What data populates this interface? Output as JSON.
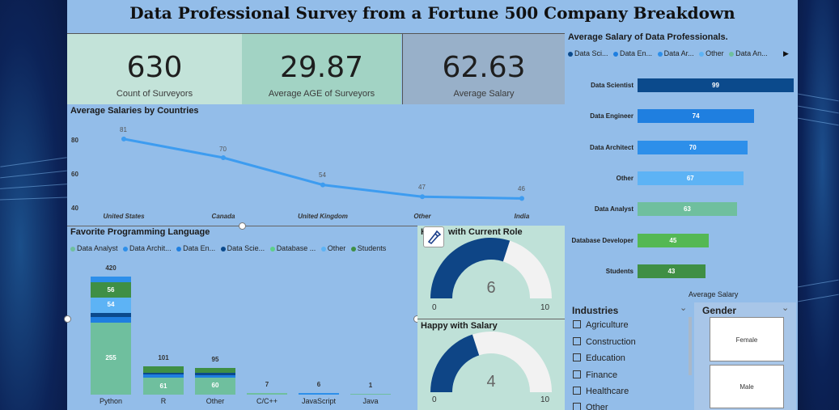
{
  "title": "Data Professional Survey from a Fortune 500 Company Breakdown",
  "kpis": [
    {
      "value": "630",
      "label": "Count of Surveyors"
    },
    {
      "value": "29.87",
      "label": "Average AGE of Surveyors"
    },
    {
      "value": "62.63",
      "label": "Average Salary"
    }
  ],
  "countries_chart": {
    "title": "Average Salaries by Countries",
    "yticks": [
      "80",
      "60",
      "40"
    ],
    "chart_data": {
      "type": "line",
      "categories": [
        "United States",
        "Canada",
        "United Kingdom",
        "Other",
        "India"
      ],
      "values": [
        81,
        70,
        54,
        47,
        46
      ],
      "value_labels": [
        "81",
        "70",
        "54",
        "47",
        "46"
      ],
      "ylim": [
        40,
        85
      ],
      "color": "#3d9cf0"
    }
  },
  "job_chart": {
    "title": "Average Salary of Data Professionals.",
    "legend": [
      "Data Sci...",
      "Data En...",
      "Data Ar...",
      "Other",
      "Data An..."
    ],
    "legend_colors": [
      "#0b4a8c",
      "#1f7fe0",
      "#2d8fea",
      "#5db3f5",
      "#6fbf9e"
    ],
    "xlabel": "Average Salary",
    "chart_data": {
      "type": "bar",
      "categories": [
        "Data Scientist",
        "Data Engineer",
        "Data Architect",
        "Other",
        "Data Analyst",
        "Database Developer",
        "Students"
      ],
      "values": [
        99,
        74,
        70,
        67,
        63,
        45,
        43
      ],
      "value_labels": [
        "99",
        "74",
        "70",
        "67",
        "63",
        "45",
        "43"
      ],
      "colors": [
        "#0b4a8c",
        "#1f7fe0",
        "#2d8fea",
        "#5db3f5",
        "#6fbf9e",
        "#54b854",
        "#3f8f45"
      ],
      "xlim": [
        0,
        99
      ]
    }
  },
  "lang_chart": {
    "title": "Favorite Programming Language",
    "legend": [
      "Data Analyst",
      "Data Archit...",
      "Data En...",
      "Data Scie...",
      "Database ...",
      "Other",
      "Students"
    ],
    "legend_colors": [
      "#6fbf9e",
      "#2d8fea",
      "#1f7fe0",
      "#0b4a8c",
      "#5dd08a",
      "#5db3f5",
      "#3f8f45"
    ],
    "chart_data": {
      "type": "bar",
      "categories": [
        "Python",
        "R",
        "Other",
        "C/C++",
        "JavaScript",
        "Java"
      ],
      "totals": [
        420,
        101,
        95,
        7,
        6,
        1
      ],
      "total_labels": [
        "420",
        "101",
        "95",
        "7",
        "6",
        "1"
      ],
      "stacks": [
        [
          {
            "v": 255,
            "c": "#6fbf9e",
            "label": "255"
          },
          {
            "v": 20,
            "c": "#1f7fe0",
            "label": ""
          },
          {
            "v": 16,
            "c": "#0b4a8c",
            "label": ""
          },
          {
            "v": 54,
            "c": "#5db3f5",
            "label": "54"
          },
          {
            "v": 56,
            "c": "#3f8f45",
            "label": "56"
          },
          {
            "v": 19,
            "c": "#2d8fea",
            "label": ""
          }
        ],
        [
          {
            "v": 61,
            "c": "#6fbf9e",
            "label": "61"
          },
          {
            "v": 10,
            "c": "#1f7fe0",
            "label": ""
          },
          {
            "v": 8,
            "c": "#0b4a8c",
            "label": ""
          },
          {
            "v": 22,
            "c": "#3f8f45",
            "label": ""
          }
        ],
        [
          {
            "v": 60,
            "c": "#6fbf9e",
            "label": "60"
          },
          {
            "v": 10,
            "c": "#1f7fe0",
            "label": ""
          },
          {
            "v": 8,
            "c": "#0b4a8c",
            "label": ""
          },
          {
            "v": 17,
            "c": "#3f8f45",
            "label": ""
          }
        ],
        [
          {
            "v": 7,
            "c": "#6fbf9e",
            "label": ""
          }
        ],
        [
          {
            "v": 6,
            "c": "#2d8fea",
            "label": ""
          }
        ],
        [
          {
            "v": 1,
            "c": "#6fbf9e",
            "label": ""
          }
        ]
      ],
      "ylim": [
        0,
        420
      ]
    }
  },
  "gauge_role": {
    "title_a": "H",
    "title_b": "with Current Role",
    "value": 6,
    "value_label": "6",
    "min": "0",
    "max": "10"
  },
  "gauge_salary": {
    "title": "Happy with Salary",
    "value": 4,
    "value_label": "4",
    "min": "0",
    "max": "10"
  },
  "industries": {
    "title": "Industries",
    "items": [
      "Agriculture",
      "Construction",
      "Education",
      "Finance",
      "Healthcare",
      "Other"
    ]
  },
  "gender": {
    "title": "Gender",
    "items": [
      "Female",
      "Male"
    ]
  }
}
